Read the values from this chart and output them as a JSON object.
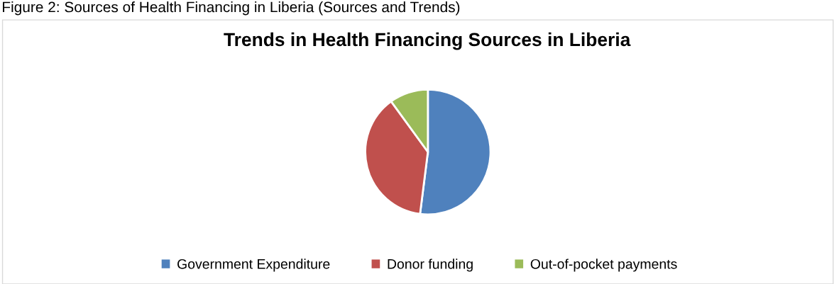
{
  "chart_data": {
    "type": "pie",
    "title": "Trends in Health Financing Sources in Liberia",
    "annotations": [
      "Figure 2: Sources of Health Financing in Liberia (Sources and Trends)"
    ],
    "categories": [
      "Government Expenditure",
      "Donor funding",
      "Out-of-pocket payments"
    ],
    "values": [
      52,
      38,
      10
    ],
    "colors": [
      "#4f81bd",
      "#c0504d",
      "#9bbb59"
    ],
    "legend": "bottom"
  }
}
